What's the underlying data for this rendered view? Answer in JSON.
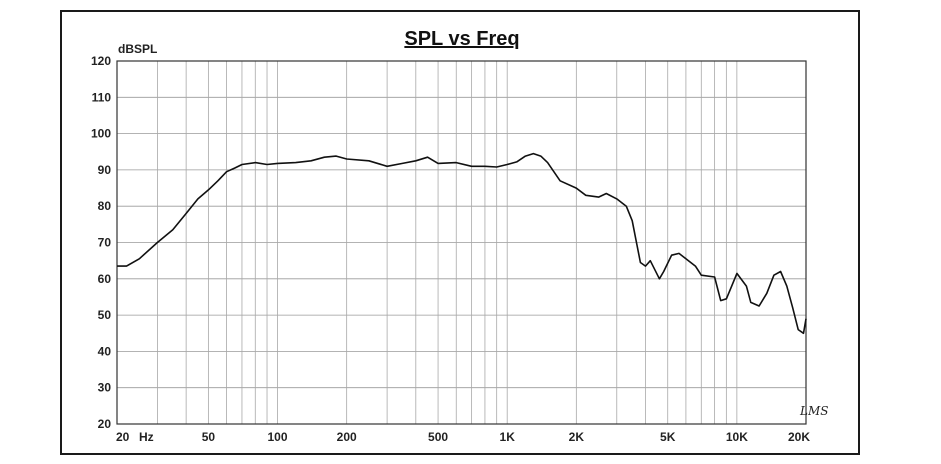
{
  "chart_data": {
    "type": "line",
    "title": "SPL vs Freq",
    "ylabel": "dBSPL",
    "xlabel": "",
    "x_scale": "log",
    "xlim": [
      20,
      20000
    ],
    "ylim": [
      20,
      120
    ],
    "grid": true,
    "y_ticks": [
      120,
      110,
      100,
      90,
      80,
      70,
      60,
      50,
      40,
      30,
      20
    ],
    "x_tick_labels": [
      {
        "value": 20,
        "label": "20"
      },
      {
        "value": 50,
        "label": "50"
      },
      {
        "value": 100,
        "label": "100"
      },
      {
        "value": 200,
        "label": "200"
      },
      {
        "value": 500,
        "label": "500"
      },
      {
        "value": 1000,
        "label": "1K"
      },
      {
        "value": 2000,
        "label": "2K"
      },
      {
        "value": 5000,
        "label": "5K"
      },
      {
        "value": 10000,
        "label": "10K"
      },
      {
        "value": 20000,
        "label": "20K"
      }
    ],
    "x_unit_label": "Hz",
    "signature": "LMS",
    "series": [
      {
        "color": "#111111",
        "points": [
          [
            20,
            63.5
          ],
          [
            22,
            63.5
          ],
          [
            25,
            65.5
          ],
          [
            30,
            70
          ],
          [
            35,
            73.5
          ],
          [
            40,
            78
          ],
          [
            45,
            82
          ],
          [
            50,
            84.5
          ],
          [
            55,
            87
          ],
          [
            60,
            89.5
          ],
          [
            65,
            90.5
          ],
          [
            70,
            91.5
          ],
          [
            80,
            92
          ],
          [
            90,
            91.5
          ],
          [
            100,
            91.8
          ],
          [
            120,
            92
          ],
          [
            140,
            92.5
          ],
          [
            160,
            93.5
          ],
          [
            180,
            93.8
          ],
          [
            200,
            93
          ],
          [
            250,
            92.5
          ],
          [
            300,
            91
          ],
          [
            350,
            91.8
          ],
          [
            400,
            92.5
          ],
          [
            450,
            93.5
          ],
          [
            500,
            91.8
          ],
          [
            600,
            92
          ],
          [
            700,
            91
          ],
          [
            800,
            91
          ],
          [
            900,
            90.8
          ],
          [
            1000,
            91.5
          ],
          [
            1100,
            92.2
          ],
          [
            1200,
            93.8
          ],
          [
            1300,
            94.5
          ],
          [
            1400,
            93.8
          ],
          [
            1500,
            92
          ],
          [
            1700,
            87
          ],
          [
            2000,
            85
          ],
          [
            2200,
            83
          ],
          [
            2500,
            82.5
          ],
          [
            2700,
            83.5
          ],
          [
            3000,
            82
          ],
          [
            3300,
            80
          ],
          [
            3500,
            76
          ],
          [
            3800,
            64.5
          ],
          [
            4000,
            63.5
          ],
          [
            4200,
            65
          ],
          [
            4600,
            60
          ],
          [
            4800,
            62
          ],
          [
            5200,
            66.5
          ],
          [
            5600,
            67
          ],
          [
            6000,
            65.5
          ],
          [
            6600,
            63.5
          ],
          [
            7000,
            61
          ],
          [
            8000,
            60.5
          ],
          [
            8500,
            54
          ],
          [
            9000,
            54.5
          ],
          [
            9500,
            58
          ],
          [
            10000,
            61.5
          ],
          [
            11000,
            58
          ],
          [
            11500,
            53.5
          ],
          [
            12500,
            52.5
          ],
          [
            13500,
            56
          ],
          [
            14500,
            61
          ],
          [
            15500,
            62
          ],
          [
            16500,
            58
          ],
          [
            17500,
            52
          ],
          [
            18500,
            46
          ],
          [
            19500,
            45
          ],
          [
            20000,
            49
          ]
        ]
      }
    ]
  }
}
